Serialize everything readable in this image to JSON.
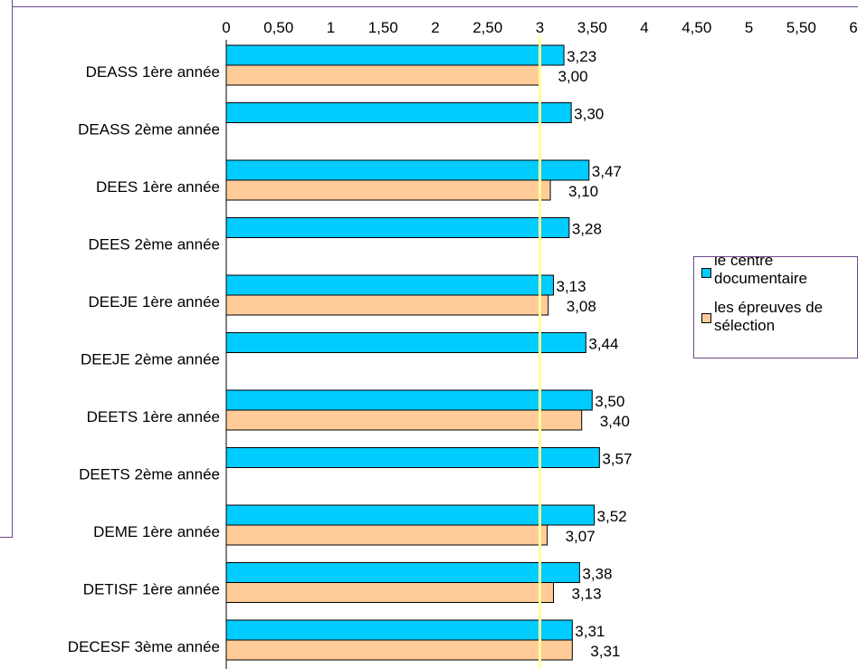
{
  "chart_data": {
    "type": "bar",
    "orientation": "horizontal",
    "categories": [
      "DEASS 1ère année",
      "DEASS 2ème année",
      "DEES 1ère année",
      "DEES 2ème année",
      "DEEJE 1ère année",
      "DEEJE 2ème année",
      "DEETS 1ère année",
      "DEETS 2ème année",
      "DEME 1ère année",
      "DETISF 1ère année",
      "DECESF 3ème année"
    ],
    "series": [
      {
        "name": "le centre documentaire",
        "color": "#00ccff",
        "values": [
          3.23,
          3.3,
          3.47,
          3.28,
          3.13,
          3.44,
          3.5,
          3.57,
          3.52,
          3.38,
          3.31
        ],
        "labels": [
          "3,23",
          "3,30",
          "3,47",
          "3,28",
          "3,13",
          "3,44",
          "3,50",
          "3,57",
          "3,52",
          "3,38",
          "3,31"
        ]
      },
      {
        "name": "les épreuves de sélection",
        "color": "#ffcc99",
        "values": [
          3.0,
          null,
          3.1,
          null,
          3.08,
          null,
          3.4,
          null,
          3.07,
          3.13,
          3.31
        ],
        "labels": [
          "3,00",
          "",
          "3,10",
          "",
          "3,08",
          "",
          "3,40",
          "",
          "3,07",
          "3,13",
          "3,31"
        ]
      }
    ],
    "x_ticks": [
      0,
      0.5,
      1,
      1.5,
      2,
      2.5,
      3,
      3.5,
      4,
      4.5,
      5,
      5.5,
      6
    ],
    "x_tick_labels": [
      "0",
      "0,50",
      "1",
      "1,50",
      "2",
      "2,50",
      "3",
      "3,50",
      "4",
      "4,50",
      "5",
      "5,50",
      "6"
    ],
    "xlim": [
      0,
      6
    ],
    "reference_line": {
      "value": 3,
      "color": "#ffff99"
    },
    "axis_position": "top",
    "grid": false,
    "legend_position": "right",
    "legend": [
      "le centre",
      "documentaire",
      "les épreuves de",
      "sélection"
    ]
  }
}
